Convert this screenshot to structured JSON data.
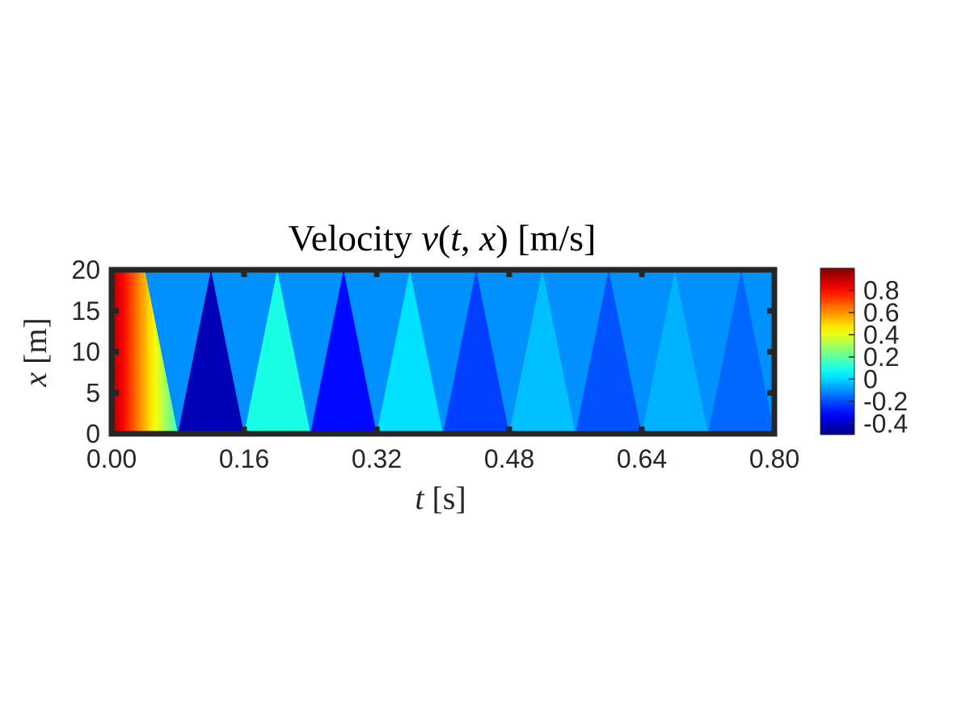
{
  "chart_data": {
    "type": "heatmap",
    "title": {
      "prefix": "Velocity ",
      "math_v": "v",
      "math_open": "(",
      "math_t": "t",
      "math_comma": ", ",
      "math_x": "x",
      "math_close": ")",
      "units": " [m/s]"
    },
    "xlabel": {
      "symbol": "t",
      "units": " [s]"
    },
    "ylabel": {
      "symbol": "x",
      "units": " [m]"
    },
    "xlim": [
      0,
      0.8
    ],
    "ylim": [
      0,
      20
    ],
    "x_ticks": [
      {
        "value": 0.0,
        "label": "0.00"
      },
      {
        "value": 0.16,
        "label": "0.16"
      },
      {
        "value": 0.32,
        "label": "0.32"
      },
      {
        "value": 0.48,
        "label": "0.48"
      },
      {
        "value": 0.64,
        "label": "0.64"
      },
      {
        "value": 0.8,
        "label": "0.80"
      }
    ],
    "y_ticks": [
      {
        "value": 0,
        "label": "0"
      },
      {
        "value": 5,
        "label": "5"
      },
      {
        "value": 10,
        "label": "10"
      },
      {
        "value": 15,
        "label": "15"
      },
      {
        "value": 20,
        "label": "20"
      }
    ],
    "colorbar": {
      "colormap": "jet",
      "clim": [
        -0.5,
        1.0
      ],
      "ticks": [
        {
          "value": 0.8,
          "label": "0.8"
        },
        {
          "value": 0.6,
          "label": "0.6"
        },
        {
          "value": 0.4,
          "label": "0.4"
        },
        {
          "value": 0.2,
          "label": "0.2"
        },
        {
          "value": 0,
          "label": "0"
        },
        {
          "value": -0.2,
          "label": "-0.2"
        },
        {
          "value": -0.4,
          "label": "-0.4"
        }
      ]
    },
    "background_value": -0.1,
    "initial_pulse": {
      "description": "velocity decreasing from ~0.95 at t=0 to ~0.2 at the wave front",
      "value_start": 0.95,
      "value_end": 0.15,
      "front_top_t": 0.04,
      "front_bottom_t": 0.08
    },
    "reflections": [
      {
        "t_left": 0.08,
        "t_peak": 0.12,
        "t_right": 0.16,
        "value": -0.42
      },
      {
        "t_left": 0.16,
        "t_peak": 0.2,
        "t_right": 0.24,
        "value": 0.1
      },
      {
        "t_left": 0.24,
        "t_peak": 0.28,
        "t_right": 0.32,
        "value": -0.3
      },
      {
        "t_left": 0.32,
        "t_peak": 0.36,
        "t_right": 0.4,
        "value": 0.02
      },
      {
        "t_left": 0.4,
        "t_peak": 0.44,
        "t_right": 0.48,
        "value": -0.22
      },
      {
        "t_left": 0.48,
        "t_peak": 0.52,
        "t_right": 0.56,
        "value": -0.03
      },
      {
        "t_left": 0.56,
        "t_peak": 0.6,
        "t_right": 0.64,
        "value": -0.19
      },
      {
        "t_left": 0.64,
        "t_peak": 0.68,
        "t_right": 0.72,
        "value": -0.05
      },
      {
        "t_left": 0.72,
        "t_peak": 0.76,
        "t_right": 0.8,
        "value": -0.16
      }
    ]
  }
}
